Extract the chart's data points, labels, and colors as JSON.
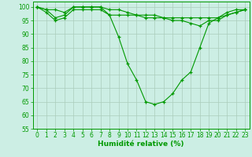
{
  "xlabel": "Humidité relative (%)",
  "background_color": "#cceee4",
  "grid_color": "#aaccbb",
  "line_color": "#009900",
  "xlim": [
    -0.5,
    23.5
  ],
  "ylim": [
    55,
    102
  ],
  "yticks": [
    55,
    60,
    65,
    70,
    75,
    80,
    85,
    90,
    95,
    100
  ],
  "xticks": [
    0,
    1,
    2,
    3,
    4,
    5,
    6,
    7,
    8,
    9,
    10,
    11,
    12,
    13,
    14,
    15,
    16,
    17,
    18,
    19,
    20,
    21,
    22,
    23
  ],
  "series": [
    [
      100,
      99,
      99,
      98,
      100,
      100,
      100,
      100,
      99,
      99,
      98,
      97,
      97,
      97,
      96,
      96,
      96,
      96,
      96,
      96,
      96,
      97,
      98,
      99
    ],
    [
      100,
      98,
      95,
      96,
      99,
      99,
      99,
      99,
      97,
      89,
      79,
      73,
      65,
      64,
      65,
      68,
      73,
      76,
      85,
      94,
      96,
      98,
      99,
      99
    ],
    [
      100,
      99,
      96,
      97,
      100,
      100,
      100,
      100,
      97,
      97,
      97,
      97,
      96,
      96,
      96,
      95,
      95,
      94,
      93,
      95,
      95,
      97,
      98,
      99
    ]
  ]
}
